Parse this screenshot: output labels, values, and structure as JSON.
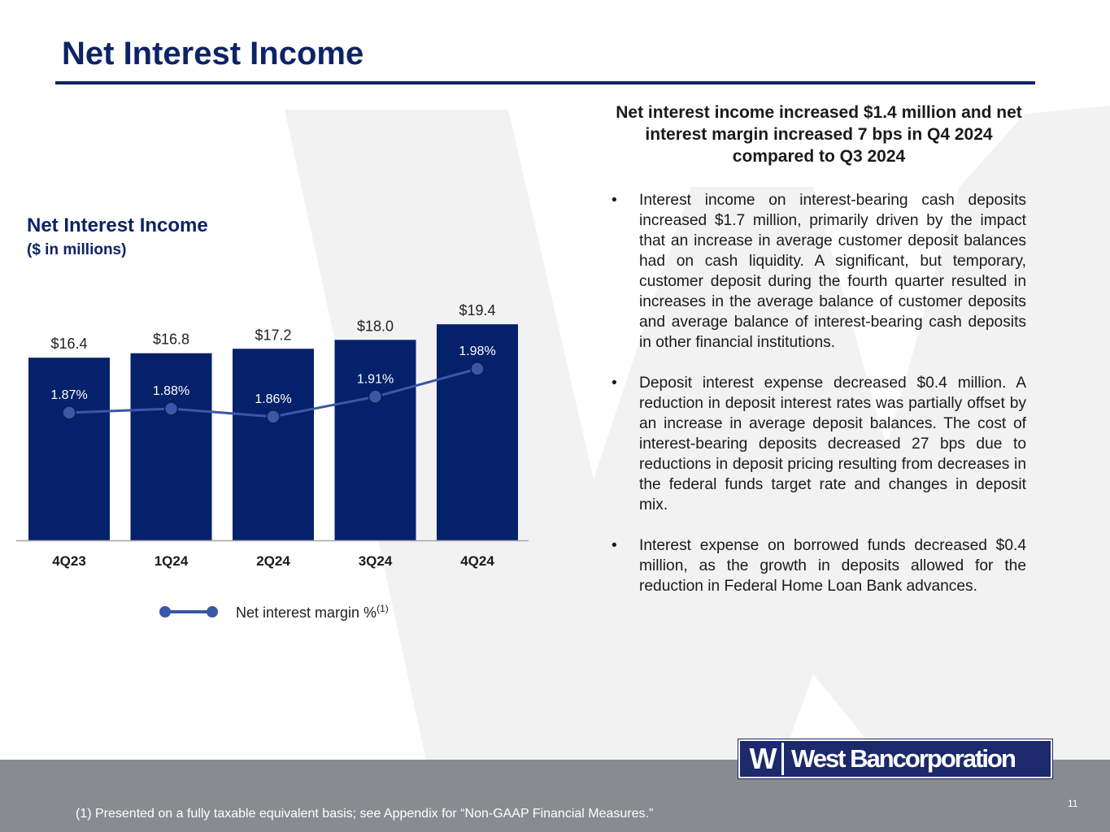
{
  "slide": {
    "title": "Net Interest Income",
    "page_number": "11",
    "footnote": "(1) Presented on a fully taxable equivalent basis; see Appendix for “Non-GAAP Financial Measures.”"
  },
  "brand": {
    "logo_mark": "W",
    "logo_text": "West Bancorporation",
    "primary_color": "#0d2366",
    "bar_color": "#06216b",
    "line_color": "#3a57a8",
    "footer_color": "#898b90"
  },
  "chart_title": "Net Interest Income",
  "chart_subtitle": "($ in millions)",
  "legend": {
    "label": "Net interest margin %",
    "superscript": "(1)"
  },
  "chart_data": {
    "type": "bar",
    "title": "Net Interest Income",
    "subtitle": "($ in millions)",
    "categories": [
      "4Q23",
      "1Q24",
      "2Q24",
      "3Q24",
      "4Q24"
    ],
    "series": [
      {
        "name": "Net Interest Income",
        "type": "bar",
        "values": [
          16.4,
          16.8,
          17.2,
          18.0,
          19.4
        ],
        "labels": [
          "$16.4",
          "$16.8",
          "$17.2",
          "$18.0",
          "$19.4"
        ]
      },
      {
        "name": "Net interest margin %",
        "type": "line",
        "values": [
          1.87,
          1.88,
          1.86,
          1.91,
          1.98
        ],
        "labels": [
          "1.87%",
          "1.88%",
          "1.86%",
          "1.91%",
          "1.98%"
        ]
      }
    ],
    "ylim": [
      0,
      19.7
    ],
    "y2lim": [
      1.55,
      2.1
    ],
    "legend_position": "bottom",
    "grid": false
  },
  "commentary": {
    "headline": "Net interest income increased $1.4 million and net interest margin increased 7 bps in Q4 2024 compared to Q3 2024",
    "bullet_symbol": "•",
    "bullets": [
      "Interest income on interest-bearing cash deposits increased $1.7 million, primarily driven by the impact that an increase in average customer deposit balances had on cash liquidity. A significant, but temporary, customer deposit during the fourth quarter resulted in increases in the average balance of customer deposits and average balance of interest-bearing cash deposits in other financial institutions.",
      "Deposit interest expense decreased $0.4 million. A reduction in deposit interest rates was partially offset by an increase in average deposit balances. The cost of interest-bearing deposits decreased 27 bps due to reductions in deposit pricing resulting from decreases in the federal funds target rate and changes in deposit mix.",
      "Interest expense on borrowed funds decreased $0.4 million, as the growth in deposits allowed for the reduction in Federal Home Loan Bank advances."
    ]
  }
}
